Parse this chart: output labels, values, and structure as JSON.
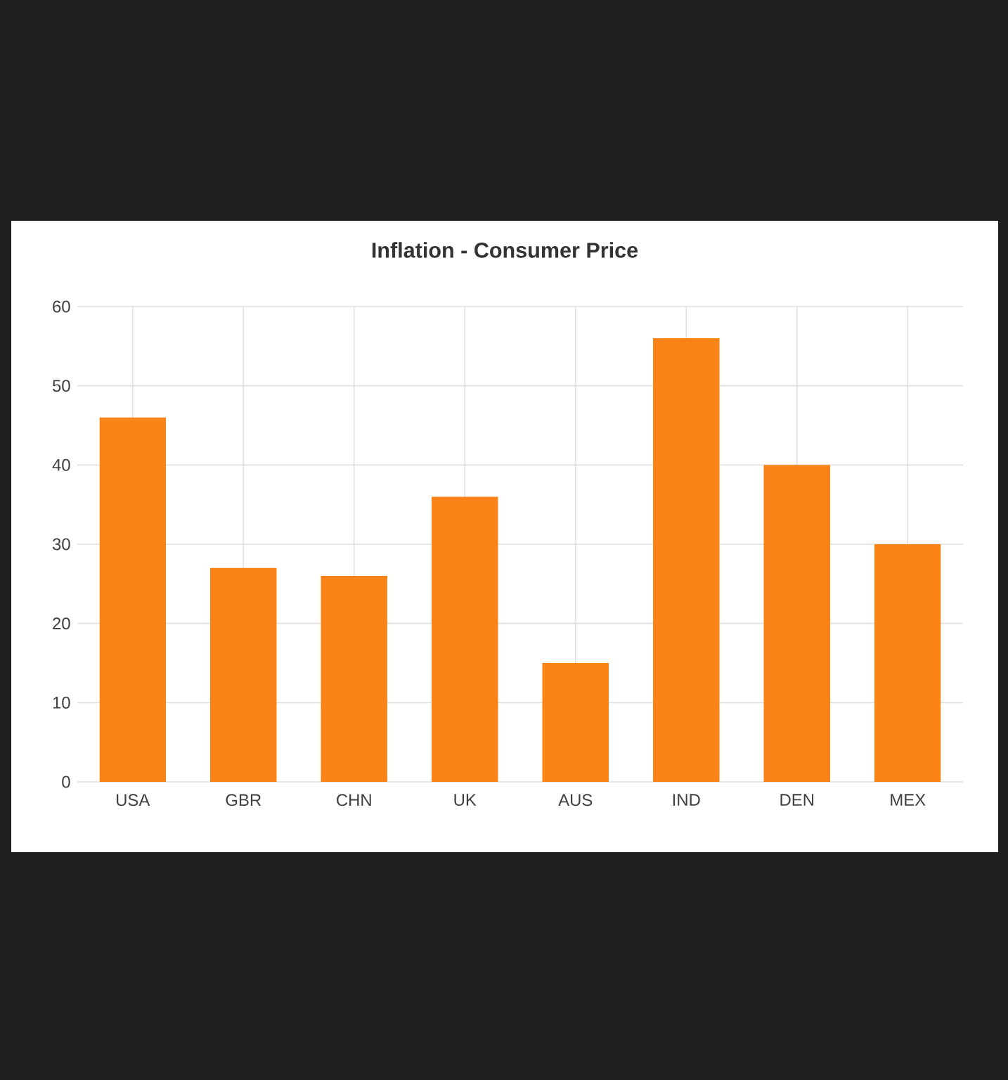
{
  "chart_data": {
    "type": "bar",
    "title": "Inflation - Consumer Price",
    "categories": [
      "USA",
      "GBR",
      "CHN",
      "UK",
      "AUS",
      "IND",
      "DEN",
      "MEX"
    ],
    "values": [
      46,
      27,
      26,
      36,
      15,
      56,
      40,
      30
    ],
    "color": "#fb8419",
    "ylim": [
      0,
      60
    ],
    "yticks": [
      0,
      10,
      20,
      30,
      40,
      50,
      60
    ],
    "grid": true
  }
}
